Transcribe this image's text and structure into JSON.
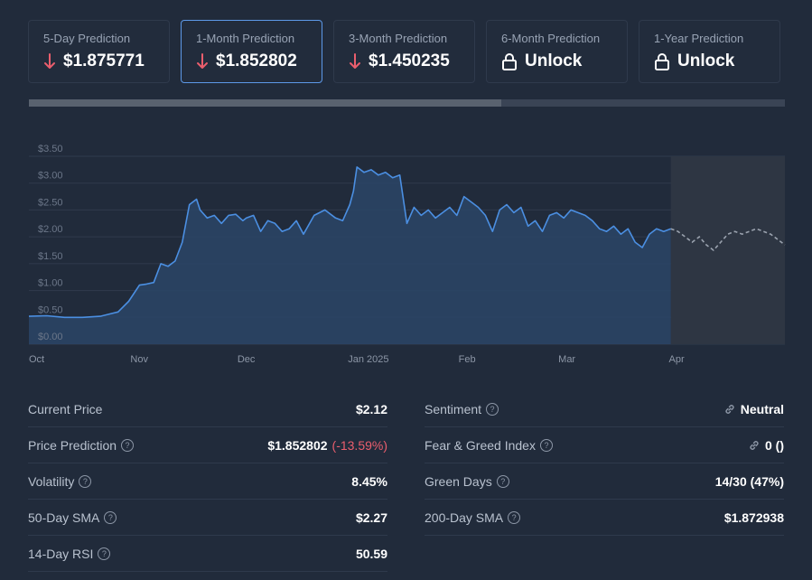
{
  "prediction_cards": [
    {
      "label": "5-Day Prediction",
      "value": "$1.875771",
      "icon": "arrow-down-icon",
      "active": false
    },
    {
      "label": "1-Month Prediction",
      "value": "$1.852802",
      "icon": "arrow-down-icon",
      "active": true
    },
    {
      "label": "3-Month Prediction",
      "value": "$1.450235",
      "icon": "arrow-down-icon",
      "active": false
    },
    {
      "label": "6-Month Prediction",
      "value": "Unlock",
      "icon": "lock-icon",
      "active": false
    },
    {
      "label": "1-Year Prediction",
      "value": "Unlock",
      "icon": "lock-icon",
      "active": false
    }
  ],
  "progress": {
    "fraction": 0.625
  },
  "colors": {
    "accent": "#5d99e8",
    "negative": "#ea5e6d",
    "line": "#4b8fe2",
    "forecast": "#9aa2ae"
  },
  "chart_data": {
    "type": "area",
    "y_tick_labels": [
      "$0.00",
      "$0.50",
      "$1.00",
      "$1.50",
      "$2.00",
      "$2.50",
      "$3.00",
      "$3.50"
    ],
    "ylim": [
      0,
      3.5
    ],
    "x_tick_labels": [
      "Oct",
      "Nov",
      "Dec",
      "Jan 2025",
      "Feb",
      "Mar",
      "Apr"
    ],
    "x_tick_index": [
      0,
      31,
      61,
      92,
      123,
      151,
      182
    ],
    "grid": true,
    "series": [
      {
        "role": "actual",
        "x_index": [
          0,
          5,
          10,
          15,
          20,
          25,
          28,
          31,
          33,
          35,
          37,
          39,
          41,
          43,
          45,
          47,
          48,
          50,
          52,
          54,
          56,
          58,
          60,
          61,
          63,
          65,
          67,
          69,
          71,
          73,
          75,
          77,
          80,
          83,
          86,
          88,
          90,
          91,
          92,
          94,
          96,
          98,
          100,
          102,
          104,
          106,
          108,
          110,
          112,
          114,
          116,
          118,
          120,
          122,
          124,
          126,
          128,
          130,
          132,
          134,
          136,
          138,
          140,
          142,
          144,
          146,
          148,
          150,
          152,
          154,
          156,
          158,
          160,
          162,
          164,
          166,
          168,
          170,
          172,
          174,
          176,
          178,
          180
        ],
        "y": [
          0.52,
          0.53,
          0.5,
          0.5,
          0.52,
          0.6,
          0.8,
          1.1,
          1.12,
          1.15,
          1.5,
          1.45,
          1.55,
          1.9,
          2.6,
          2.7,
          2.5,
          2.35,
          2.4,
          2.25,
          2.4,
          2.42,
          2.3,
          2.35,
          2.4,
          2.1,
          2.3,
          2.25,
          2.1,
          2.15,
          2.3,
          2.05,
          2.4,
          2.5,
          2.35,
          2.3,
          2.6,
          2.85,
          3.3,
          3.2,
          3.25,
          3.15,
          3.2,
          3.1,
          3.15,
          2.25,
          2.55,
          2.4,
          2.5,
          2.35,
          2.45,
          2.55,
          2.4,
          2.75,
          2.65,
          2.55,
          2.4,
          2.1,
          2.5,
          2.6,
          2.45,
          2.55,
          2.2,
          2.3,
          2.1,
          2.4,
          2.45,
          2.35,
          2.5,
          2.45,
          2.4,
          2.3,
          2.15,
          2.1,
          2.2,
          2.05,
          2.15,
          1.9,
          1.8,
          2.05,
          2.15,
          2.1,
          2.15
        ]
      },
      {
        "role": "forecast",
        "x_index": [
          180,
          182,
          184,
          186,
          188,
          190,
          192,
          194,
          196,
          198,
          200,
          202,
          204,
          206,
          208,
          210,
          212
        ],
        "y": [
          2.15,
          2.1,
          2.0,
          1.9,
          2.0,
          1.85,
          1.75,
          1.9,
          2.05,
          2.1,
          2.05,
          2.1,
          2.15,
          2.1,
          2.05,
          1.95,
          1.85
        ]
      }
    ]
  },
  "stats_left": [
    {
      "label": "Current Price",
      "value": "$2.12",
      "help": false
    },
    {
      "label": "Price Prediction",
      "value": "$1.852802",
      "extra": "(-13.59%)",
      "help": true
    },
    {
      "label": "Volatility",
      "value": "8.45%",
      "help": true
    },
    {
      "label": "50-Day SMA",
      "value": "$2.27",
      "help": true
    },
    {
      "label": "14-Day RSI",
      "value": "50.59",
      "help": true
    }
  ],
  "stats_right": [
    {
      "label": "Sentiment",
      "value": "Neutral",
      "help": true,
      "icon": "link-icon"
    },
    {
      "label": "Fear & Greed Index",
      "value": "0 ()",
      "help": true,
      "icon": "link-icon"
    },
    {
      "label": "Green Days",
      "value": "14/30 (47%)",
      "help": true
    },
    {
      "label": "200-Day SMA",
      "value": "$1.872938",
      "help": true
    }
  ]
}
